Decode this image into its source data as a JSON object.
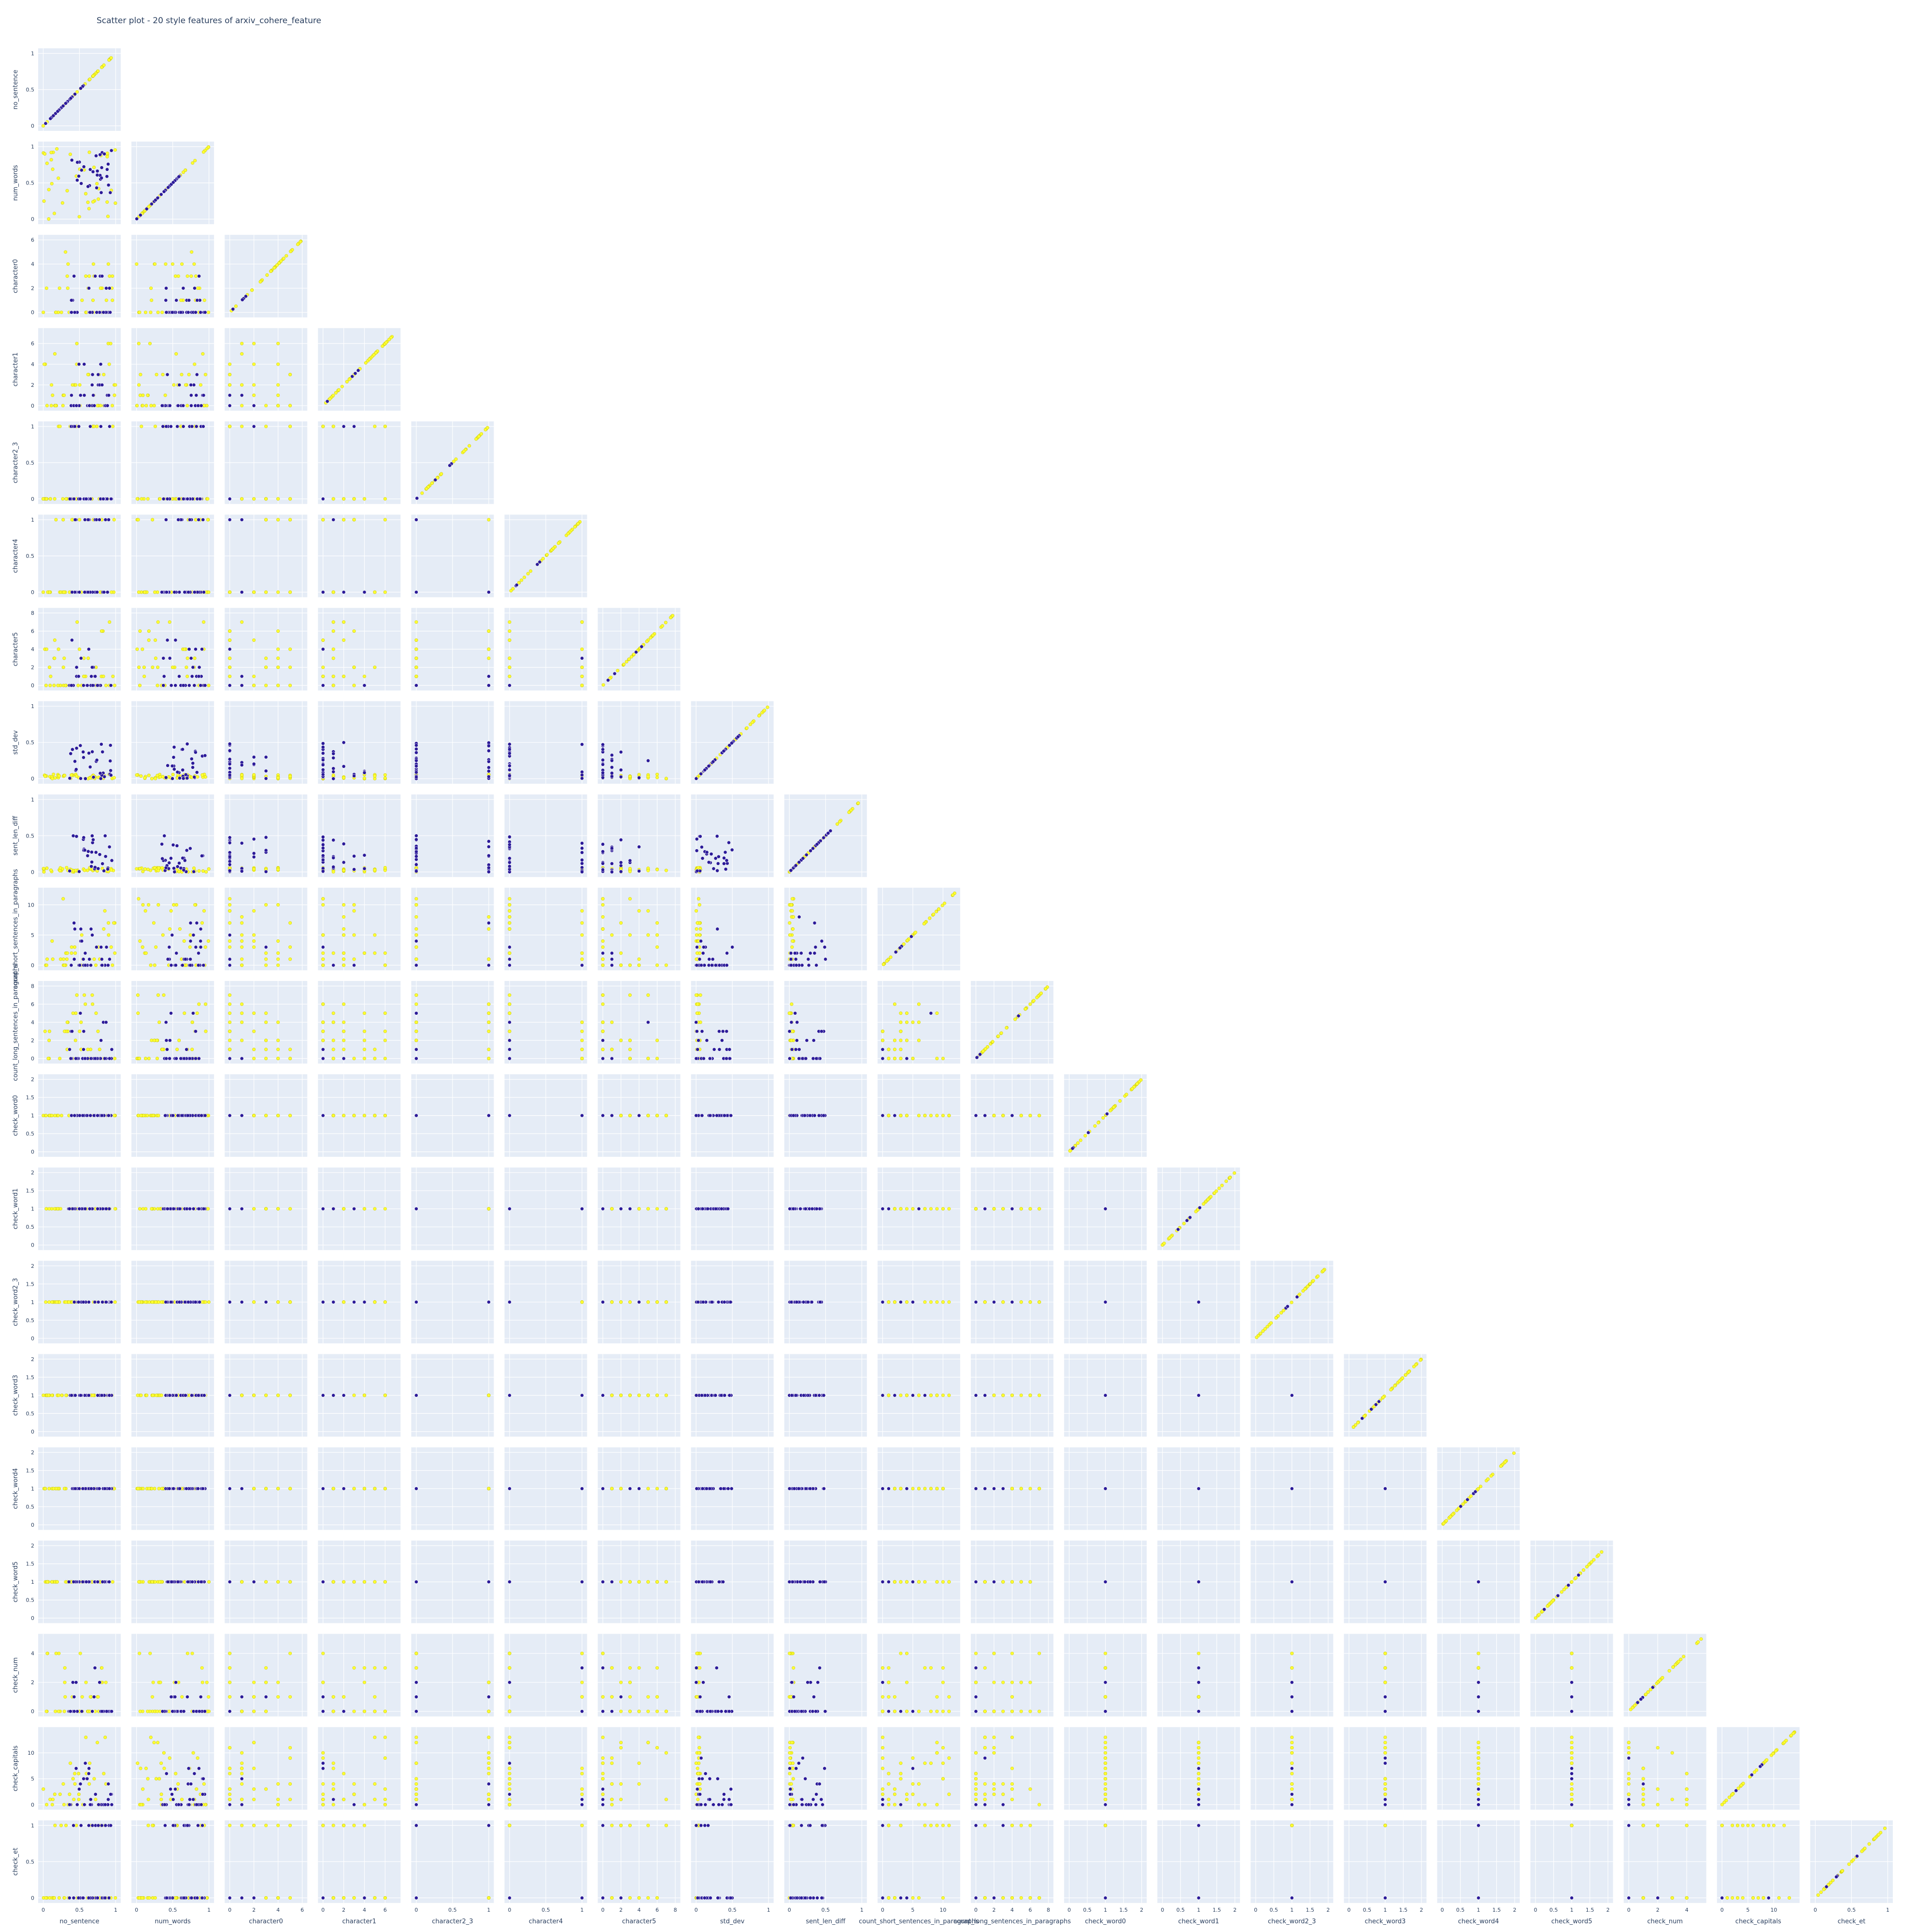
{
  "title": "Scatter plot - 20 style features of arxiv_cohere_feature",
  "colors": {
    "panel_bg": "#e5ecf6",
    "grid": "#ffffff",
    "text": "#2a3f5f",
    "point_yellow": "#ffff33",
    "point_yellow_edge": "#c8c800",
    "point_blue": "#2c1b99",
    "point_blue_edge": "#ffffff"
  },
  "chart_data": {
    "type": "scatter",
    "layout": "lower-triangular scatter matrix",
    "features": [
      {
        "name": "no_sentence",
        "range": [
          0,
          1
        ],
        "ticks": [
          "0",
          "0.5",
          "1"
        ]
      },
      {
        "name": "num_words",
        "range": [
          0,
          1
        ],
        "ticks": [
          "0",
          "0.5",
          "1"
        ]
      },
      {
        "name": "character0",
        "range": [
          0,
          6
        ],
        "ticks": [
          "0",
          "2",
          "4",
          "6"
        ]
      },
      {
        "name": "character1",
        "range": [
          0,
          7
        ],
        "ticks": [
          "0",
          "2",
          "4",
          "6"
        ]
      },
      {
        "name": "character2_3",
        "range": [
          0,
          1
        ],
        "ticks": [
          "0",
          "0.5",
          "1"
        ]
      },
      {
        "name": "character4",
        "range": [
          0,
          1
        ],
        "ticks": [
          "0",
          "0.5",
          "1"
        ]
      },
      {
        "name": "character5",
        "range": [
          0,
          8
        ],
        "ticks": [
          "0",
          "2",
          "4",
          "6",
          "8"
        ]
      },
      {
        "name": "std_dev",
        "range": [
          0,
          1
        ],
        "ticks": [
          "0",
          "0.5",
          "1"
        ]
      },
      {
        "name": "sent_len_diff",
        "range": [
          0,
          1
        ],
        "ticks": [
          "0",
          "0.5",
          "1"
        ]
      },
      {
        "name": "count_short_sentences_in_paragraphs",
        "range": [
          0,
          12
        ],
        "ticks": [
          "0",
          "5",
          "10"
        ]
      },
      {
        "name": "count_long_sentences_in_paragraphs",
        "range": [
          0,
          8
        ],
        "ticks": [
          "0",
          "2",
          "4",
          "6",
          "8"
        ]
      },
      {
        "name": "check_word0",
        "range": [
          0,
          2
        ],
        "ticks": [
          "0",
          "0.5",
          "1",
          "1.5",
          "2"
        ]
      },
      {
        "name": "check_word1",
        "range": [
          0,
          2
        ],
        "ticks": [
          "0",
          "0.5",
          "1",
          "1.5",
          "2"
        ]
      },
      {
        "name": "check_word2_3",
        "range": [
          0,
          2
        ],
        "ticks": [
          "0",
          "0.5",
          "1",
          "1.5",
          "2"
        ]
      },
      {
        "name": "check_word3",
        "range": [
          0,
          2
        ],
        "ticks": [
          "0",
          "0.5",
          "1",
          "1.5",
          "2"
        ]
      },
      {
        "name": "check_word4",
        "range": [
          0,
          2
        ],
        "ticks": [
          "0",
          "0.5",
          "1",
          "1.5",
          "2"
        ]
      },
      {
        "name": "check_word5",
        "range": [
          0,
          2
        ],
        "ticks": [
          "0",
          "0.5",
          "1",
          "1.5",
          "2"
        ]
      },
      {
        "name": "check_num",
        "range": [
          0,
          5
        ],
        "ticks": [
          "0",
          "2",
          "4"
        ]
      },
      {
        "name": "check_capitals",
        "range": [
          0,
          14
        ],
        "ticks": [
          "0",
          "5",
          "10"
        ]
      },
      {
        "name": "check_et",
        "range": [
          0,
          1
        ],
        "ticks": [
          "0",
          "0.5",
          "1"
        ]
      }
    ],
    "series": [
      {
        "color": "#ffff33"
      },
      {
        "color": "#2c1b99"
      }
    ],
    "grid": true,
    "legend": "none"
  }
}
